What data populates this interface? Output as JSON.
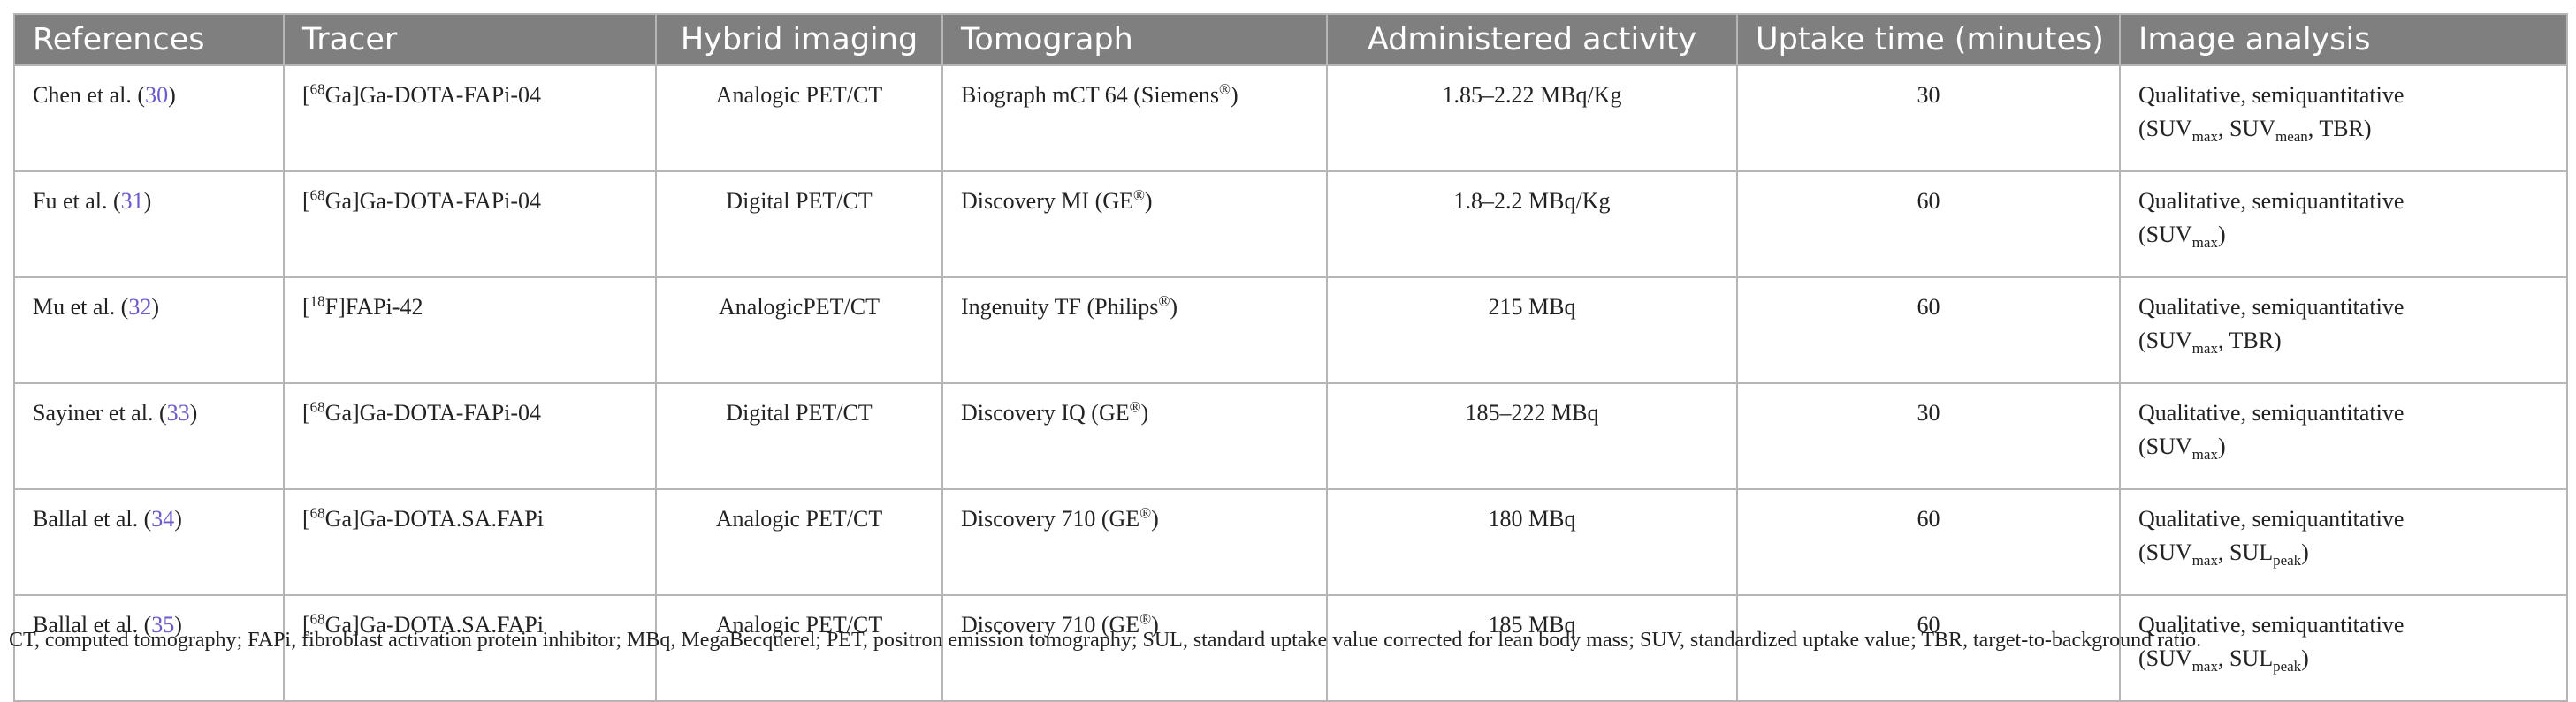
{
  "table": {
    "header": [
      "References",
      "Tracer",
      "Hybrid imaging",
      "Tomograph",
      "Administered activity",
      "Uptake time (minutes)",
      "Image analysis"
    ],
    "rows": [
      [
        [
          [
            "Chen et al. (",
            {
              "t": "30",
              "s": "link"
            },
            ")"
          ]
        ],
        [
          [
            "[",
            {
              "t": "68",
              "s": "sup"
            },
            "Ga]Ga-DOTA-FAPi-04"
          ]
        ],
        [
          [
            "Analogic PET/CT"
          ]
        ],
        [
          [
            "Biograph mCT 64 (Siemens",
            {
              "t": "®",
              "s": "sup"
            },
            ")"
          ]
        ],
        [
          [
            "1.85–2.22 MBq/Kg"
          ]
        ],
        [
          [
            30
          ]
        ],
        [
          [
            "Qualitative, semiquantitative"
          ],
          [
            "(SUV",
            {
              "t": "max",
              "s": "sub"
            },
            ", SUV",
            {
              "t": "mean",
              "s": "sub"
            },
            ", TBR)"
          ]
        ]
      ],
      [
        [
          [
            "Fu et al. (",
            {
              "t": "31",
              "s": "link"
            },
            ")"
          ]
        ],
        [
          [
            "[",
            {
              "t": "68",
              "s": "sup"
            },
            "Ga]Ga-DOTA-FAPi-04"
          ]
        ],
        [
          [
            "Digital PET/CT"
          ]
        ],
        [
          [
            "Discovery MI (GE",
            {
              "t": "®",
              "s": "sup"
            },
            ")"
          ]
        ],
        [
          [
            "1.8–2.2 MBq/Kg"
          ]
        ],
        [
          [
            60
          ]
        ],
        [
          [
            "Qualitative, semiquantitative"
          ],
          [
            "(SUV",
            {
              "t": "max",
              "s": "sub"
            },
            ")"
          ]
        ]
      ],
      [
        [
          [
            "Mu et al. (",
            {
              "t": "32",
              "s": "link"
            },
            ")"
          ]
        ],
        [
          [
            "[",
            {
              "t": "18",
              "s": "sup"
            },
            "F]FAPi-42"
          ]
        ],
        [
          [
            "AnalogicPET/CT"
          ]
        ],
        [
          [
            "Ingenuity TF (Philips",
            {
              "t": "®",
              "s": "sup"
            },
            ")"
          ]
        ],
        [
          [
            "215 MBq"
          ]
        ],
        [
          [
            60
          ]
        ],
        [
          [
            "Qualitative, semiquantitative"
          ],
          [
            "(SUV",
            {
              "t": "max",
              "s": "sub"
            },
            ", TBR)"
          ]
        ]
      ],
      [
        [
          [
            "Sayiner et al. (",
            {
              "t": "33",
              "s": "link"
            },
            ")"
          ]
        ],
        [
          [
            "[",
            {
              "t": "68",
              "s": "sup"
            },
            "Ga]Ga-DOTA-FAPi-04"
          ]
        ],
        [
          [
            "Digital PET/CT"
          ]
        ],
        [
          [
            "Discovery IQ (GE",
            {
              "t": "®",
              "s": "sup"
            },
            ")"
          ]
        ],
        [
          [
            "185–222 MBq"
          ]
        ],
        [
          [
            30
          ]
        ],
        [
          [
            "Qualitative, semiquantitative"
          ],
          [
            "(SUV",
            {
              "t": "max",
              "s": "sub"
            },
            ")"
          ]
        ]
      ],
      [
        [
          [
            "Ballal et al. (",
            {
              "t": "34",
              "s": "link"
            },
            ")"
          ]
        ],
        [
          [
            "[",
            {
              "t": "68",
              "s": "sup"
            },
            "Ga]Ga-DOTA.SA.FAPi"
          ]
        ],
        [
          [
            "Analogic PET/CT"
          ]
        ],
        [
          [
            "Discovery 710 (GE",
            {
              "t": "®",
              "s": "sup"
            },
            ")"
          ]
        ],
        [
          [
            "180 MBq"
          ]
        ],
        [
          [
            60
          ]
        ],
        [
          [
            "Qualitative, semiquantitative"
          ],
          [
            "(SUV",
            {
              "t": "max",
              "s": "sub"
            },
            ", SUL",
            {
              "t": "peak",
              "s": "sub"
            },
            ")"
          ]
        ]
      ],
      [
        [
          [
            "Ballal et al. (",
            {
              "t": "35",
              "s": "link"
            },
            ")"
          ]
        ],
        [
          [
            "[",
            {
              "t": "68",
              "s": "sup"
            },
            "Ga]Ga-DOTA.SA.FAPi"
          ]
        ],
        [
          [
            "Analogic PET/CT"
          ]
        ],
        [
          [
            "Discovery 710 (GE",
            {
              "t": "®",
              "s": "sup"
            },
            ")"
          ]
        ],
        [
          [
            "185 MBq"
          ]
        ],
        [
          [
            60
          ]
        ],
        [
          [
            "Qualitative, semiquantitative"
          ],
          [
            "(SUV",
            {
              "t": "max",
              "s": "sub"
            },
            ", SUL",
            {
              "t": "peak",
              "s": "sub"
            },
            ")"
          ]
        ]
      ]
    ],
    "footnote": "CT, computed tomography; FAPi, fibroblast activation protein inhibitor; MBq, MegaBecquerel; PET, positron emission tomography; SUL, standard uptake value corrected for lean body mass; SUV, standardized uptake value; TBR, target-to-background ratio."
  }
}
